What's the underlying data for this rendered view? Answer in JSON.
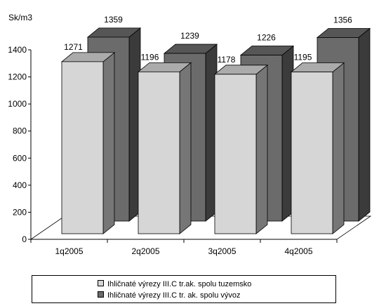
{
  "chart_data": {
    "type": "bar",
    "ylabel": "Sk/m3",
    "ylim": [
      0,
      1400
    ],
    "yticks": [
      0,
      200,
      400,
      600,
      800,
      1000,
      1200,
      1400
    ],
    "categories": [
      "1q2005",
      "2q2005",
      "3q2005",
      "4q2005"
    ],
    "series": [
      {
        "name": "Ihličnaté výrezy III.C tr.ak. spolu tuzemsko",
        "values": [
          1271,
          1196,
          1178,
          1195
        ],
        "color": "#d6d6d6"
      },
      {
        "name": "Ihličnaté výrezy III.C tr. ak. spolu vývoz",
        "values": [
          1359,
          1239,
          1226,
          1356
        ],
        "color": "#6b6b6b"
      }
    ],
    "style": "3d-clustered-bar",
    "legend_position": "bottom",
    "grid": false
  }
}
